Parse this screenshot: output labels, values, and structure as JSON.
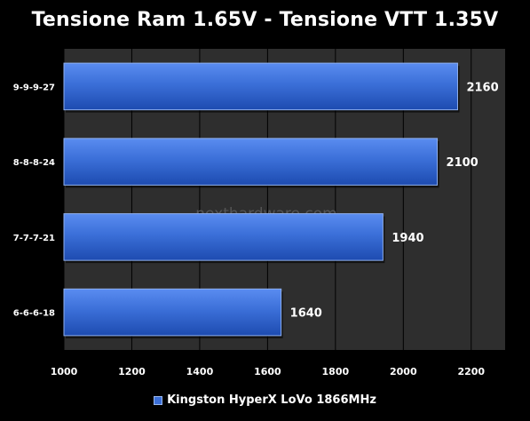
{
  "chart_data": {
    "type": "bar",
    "orientation": "horizontal",
    "title": "Tensione Ram 1.65V - Tensione VTT 1.35V",
    "categories": [
      "9-9-9-27",
      "8-8-8-24",
      "7-7-7-21",
      "6-6-6-18"
    ],
    "series": [
      {
        "name": "Kingston HyperX LoVo 1866MHz",
        "values": [
          2160,
          2100,
          1940,
          1640
        ]
      }
    ],
    "xlim": [
      1000,
      2300
    ],
    "xticks": [
      1000,
      1200,
      1400,
      1600,
      1800,
      2000,
      2200
    ],
    "grid": true,
    "legend_position": "bottom",
    "watermark": "nexthardware.com",
    "colors": {
      "bar": "#3b6fd8",
      "bar_light": "#5a8cf0",
      "bar_dark": "#1d4bb0",
      "plot_bg": "#2e2e2e",
      "grid": "#000000"
    }
  }
}
